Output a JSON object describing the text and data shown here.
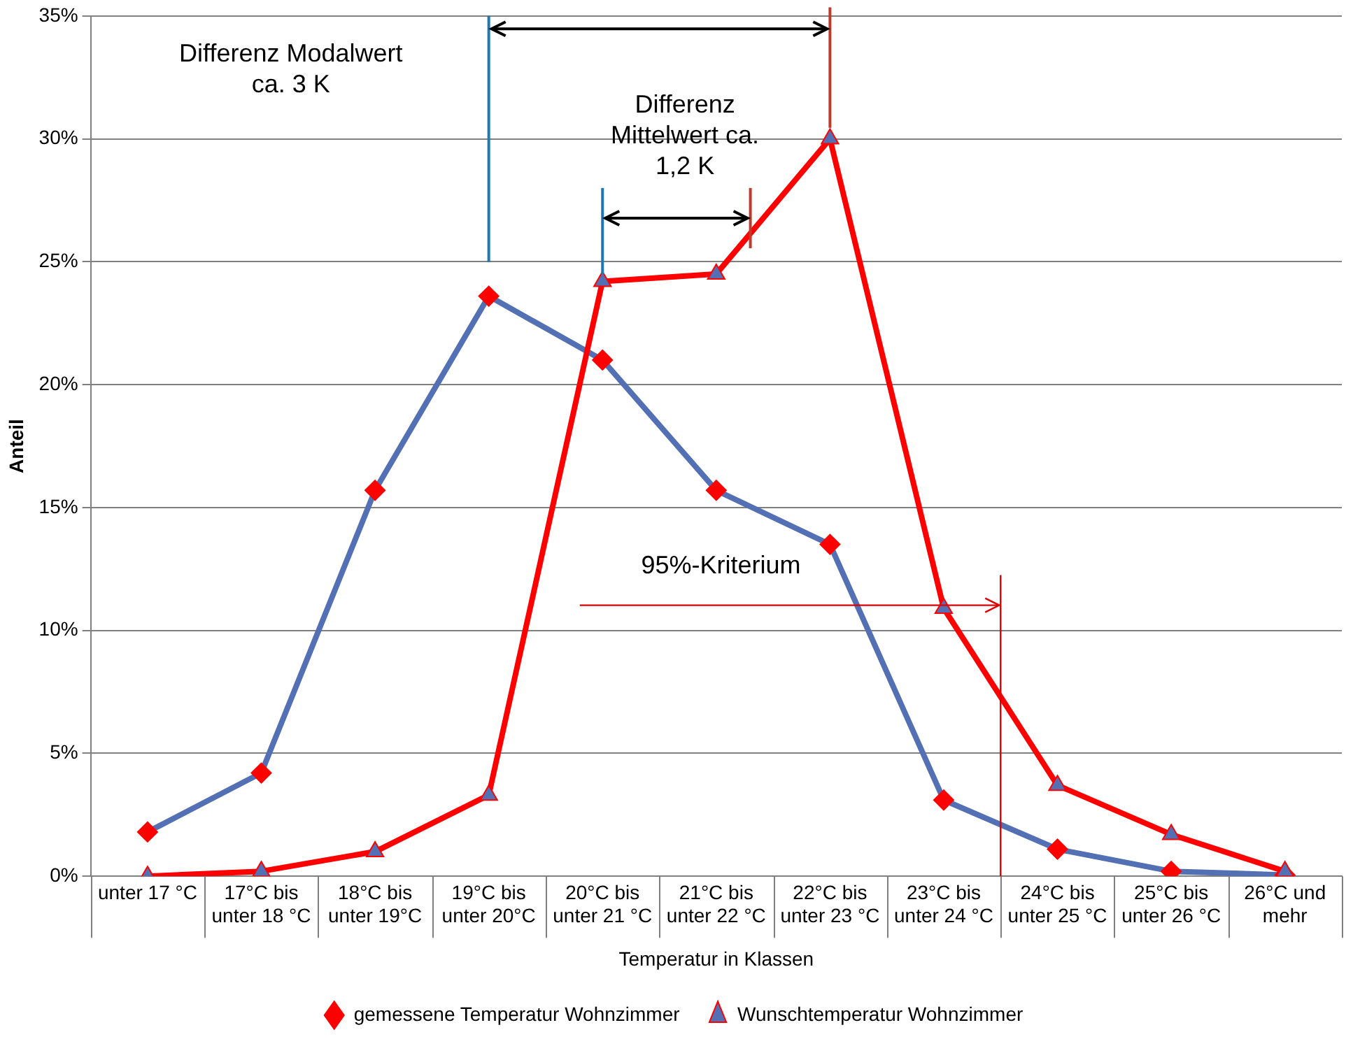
{
  "chart_data": {
    "type": "line",
    "xlabel": "Temperatur in Klassen",
    "ylabel": "Anteil",
    "categories": [
      "unter 17 °C",
      "17°C bis\nunter 18 °C",
      "18°C bis\nunter 19°C",
      "19°C bis\nunter 20°C",
      "20°C bis\nunter 21 °C",
      "21°C bis\nunter 22 °C",
      "22°C bis\nunter 23 °C",
      "23°C bis\nunter 24 °C",
      "24°C bis\nunter 25 °C",
      "25°C bis\nunter 26 °C",
      "26°C und\nmehr"
    ],
    "series": [
      {
        "name": "gemessene Temperatur Wohnzimmer",
        "color": "#5470b4",
        "marker": "diamond",
        "values": [
          1.8,
          4.2,
          15.7,
          23.6,
          21.0,
          15.7,
          13.5,
          3.1,
          1.1,
          0.2,
          0.05
        ]
      },
      {
        "name": "Wunschtemperatur Wohnzimmer",
        "color": "#ff0000",
        "marker": "triangle",
        "values": [
          0,
          0.2,
          1.0,
          3.3,
          24.2,
          24.5,
          30.0,
          10.9,
          3.7,
          1.7,
          0.2
        ]
      }
    ],
    "ylim": [
      0,
      35
    ],
    "yticks": [
      {
        "value": 0,
        "label": "0%"
      },
      {
        "value": 5,
        "label": "5%"
      },
      {
        "value": 10,
        "label": "10%"
      },
      {
        "value": 15,
        "label": "15%"
      },
      {
        "value": 20,
        "label": "20%"
      },
      {
        "value": 25,
        "label": "25%"
      },
      {
        "value": 30,
        "label": "30%"
      },
      {
        "value": 35,
        "label": "35%"
      }
    ],
    "grid": "y",
    "legend": "bottom",
    "annotations": [
      "Differenz Modalwert\nca. 3 K",
      "Differenz\nMittelwert ca.\n1,2 K",
      "95%-Kriterium"
    ]
  }
}
